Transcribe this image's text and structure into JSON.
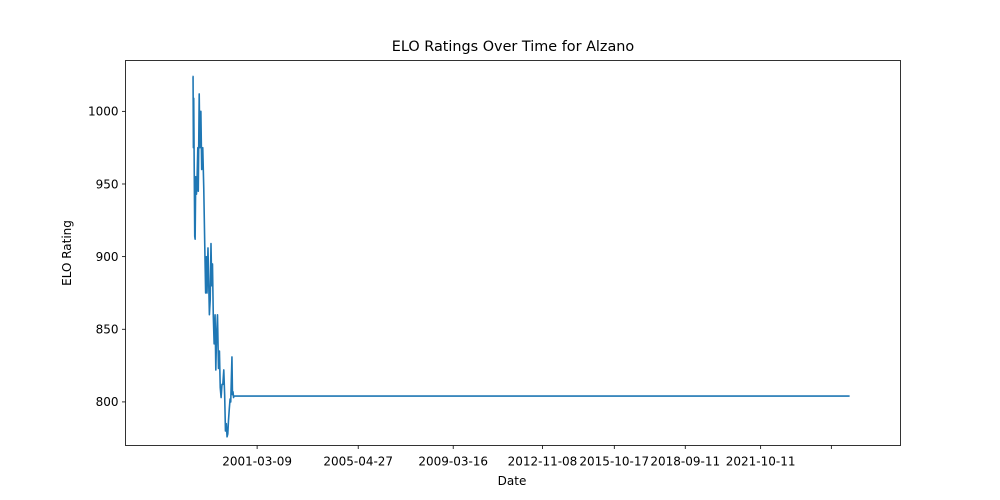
{
  "chart_data": {
    "type": "line",
    "title": "ELO Ratings Over Time for Alzano",
    "xlabel": "Date",
    "ylabel": "ELO Rating",
    "x_ticks": [
      "2001-03-09",
      "2005-04-27",
      "2009-03-16",
      "2012-11-08",
      "2015-10-17",
      "2018-09-11",
      "2021-10-11",
      ""
    ],
    "y_ticks": [
      800,
      850,
      900,
      950,
      1000
    ],
    "ylim": [
      770,
      1035
    ],
    "xlim": [
      "1995-10-21",
      "2027-07-01"
    ],
    "grid": false,
    "legend": "none",
    "color": "#1f77b4",
    "series": [
      {
        "x": [
          "1998-07-18",
          "1998-07-26",
          "1998-07-31",
          "1998-08-05",
          "1998-08-11",
          "1998-08-20",
          "1998-08-26",
          "1998-09-04",
          "1998-09-15",
          "1998-09-24",
          "1998-10-05",
          "1998-10-12",
          "1998-10-26",
          "1998-11-05",
          "1998-11-20",
          "1998-12-02",
          "1998-12-18",
          "1999-01-02",
          "1999-01-18",
          "1999-01-30",
          "1999-02-10",
          "1999-02-20",
          "1999-03-06",
          "1999-03-18",
          "1999-03-27",
          "1999-04-08",
          "1999-04-20",
          "1999-05-01",
          "1999-05-12",
          "1999-05-24",
          "1999-06-06",
          "1999-06-20",
          "1999-07-01",
          "1999-07-12",
          "1999-07-26",
          "1999-08-10",
          "1999-08-24",
          "1999-09-05",
          "1999-09-18",
          "1999-10-01",
          "1999-10-14",
          "1999-10-28",
          "1999-11-10",
          "1999-11-22",
          "1999-12-05",
          "1999-12-16",
          "1999-12-27",
          "2000-01-06",
          "2000-01-18",
          "2000-01-30",
          "2000-02-09",
          "2000-02-18",
          "2000-02-27",
          "2000-03-06",
          "2000-03-14",
          "2000-03-22",
          "2000-03-28",
          "2025-06-01"
        ],
        "y": [
          1024,
          1024,
          975,
          1009,
          970,
          914,
          912,
          955,
          943,
          953,
          975,
          945,
          1012,
          975,
          1000,
          960,
          975,
          947,
          905,
          875,
          900,
          875,
          906,
          880,
          860,
          870,
          909,
          880,
          895,
          860,
          840,
          860,
          822,
          845,
          860,
          823,
          835,
          810,
          803,
          812,
          812,
          822,
          805,
          780,
          785,
          776,
          778,
          787,
          795,
          802,
          800,
          816,
          831,
          805,
          807,
          803,
          804,
          804
        ]
      }
    ]
  }
}
